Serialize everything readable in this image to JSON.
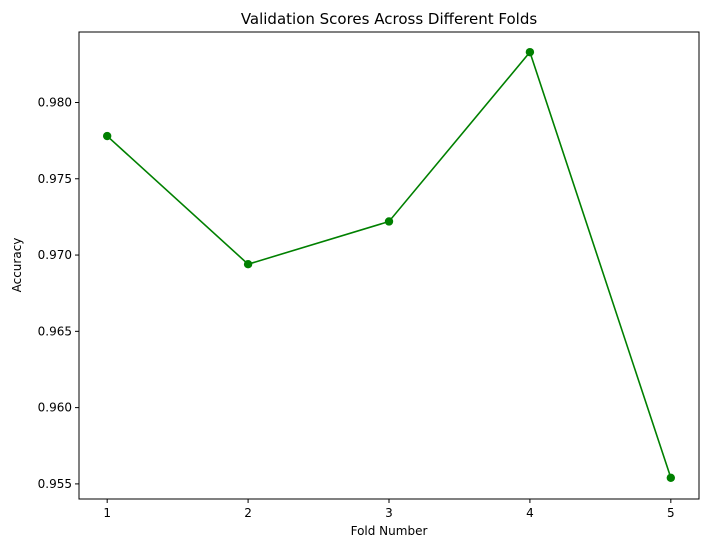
{
  "chart_data": {
    "type": "line",
    "title": "Validation Scores Across Different Folds",
    "xlabel": "Fold Number",
    "ylabel": "Accuracy",
    "x": [
      1,
      2,
      3,
      4,
      5
    ],
    "xticks": [
      "1",
      "2",
      "3",
      "4",
      "5"
    ],
    "yticks": [
      "0.955",
      "0.960",
      "0.965",
      "0.970",
      "0.975",
      "0.980"
    ],
    "xlim": [
      0.8,
      5.2
    ],
    "ylim": [
      0.95401,
      0.98462
    ],
    "series": [
      {
        "values": [
          0.9778,
          0.9694,
          0.9722,
          0.9833,
          0.9554
        ],
        "color": "#008000",
        "marker": "circle"
      }
    ],
    "grid": false,
    "legend": "none"
  }
}
